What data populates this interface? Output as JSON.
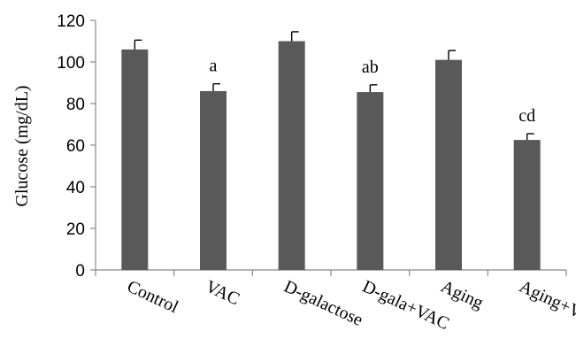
{
  "chart_data": {
    "type": "bar",
    "categories": [
      "Control",
      "VAC",
      "D-galactose",
      "D-gala+VAC",
      "Aging",
      "Aging+VAC"
    ],
    "values": [
      106,
      86,
      110,
      85.5,
      101,
      62.5
    ],
    "error_upper": [
      4.5,
      3.5,
      4.5,
      3.5,
      4.5,
      3
    ],
    "annotations": [
      "",
      "a",
      "",
      "ab",
      "",
      "cd"
    ],
    "title": "",
    "xlabel": "",
    "ylabel": "Glucose (mg/dL)",
    "ylim": [
      0,
      120
    ],
    "yticks": [
      0,
      20,
      40,
      60,
      80,
      100,
      120
    ],
    "grid": false,
    "bar_color": "#595959"
  }
}
